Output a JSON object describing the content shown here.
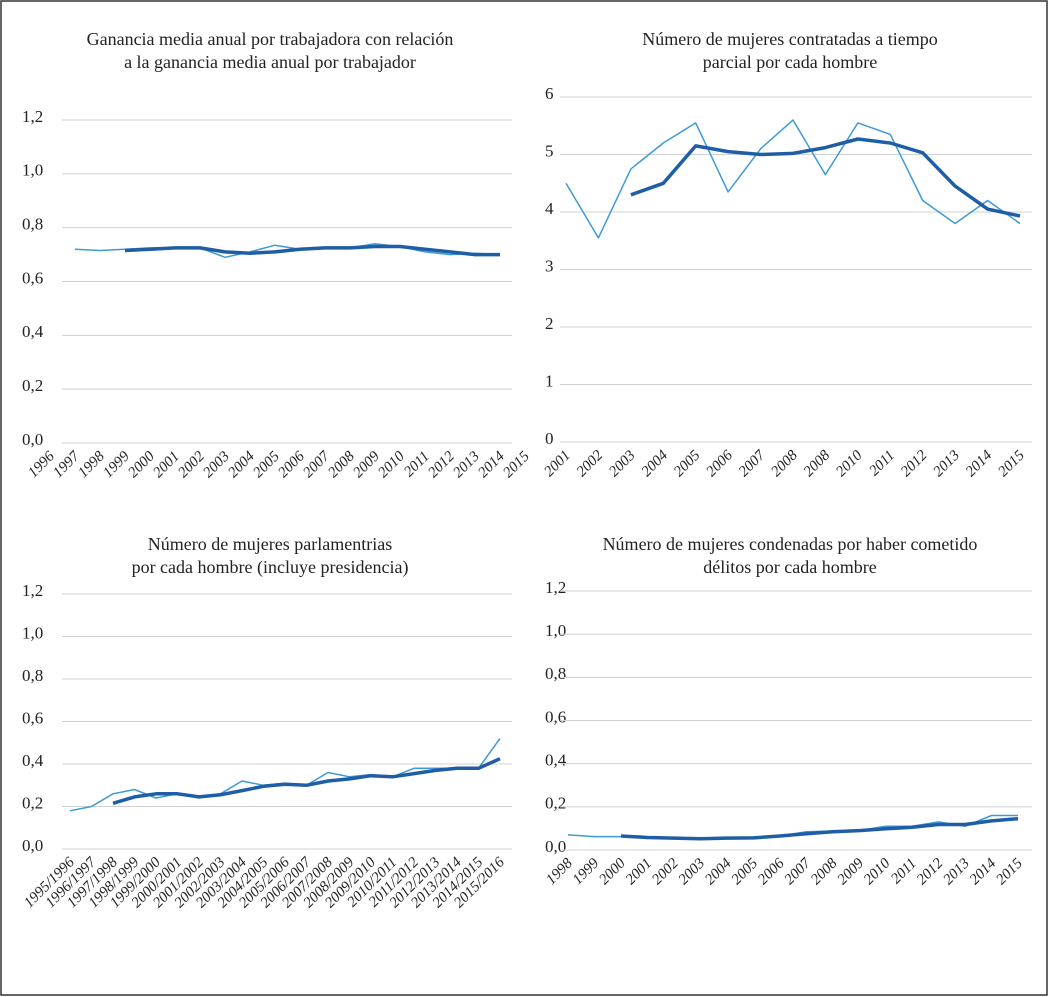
{
  "chart_data": [
    {
      "type": "line",
      "title": [
        "Ganancia media anual por trabajadora con relación",
        "a la ganancia media anual por trabajador"
      ],
      "categories": [
        "1996",
        "1997",
        "1998",
        "1999",
        "2000",
        "2001",
        "2002",
        "2003",
        "2004",
        "2005",
        "2006",
        "2007",
        "2008",
        "2009",
        "2010",
        "2011",
        "2012",
        "2013",
        "2014",
        "2015"
      ],
      "series": [
        {
          "color": "#3d9ad8",
          "values": [
            null,
            0.72,
            0.715,
            0.72,
            0.725,
            0.725,
            0.725,
            0.69,
            0.71,
            0.735,
            0.72,
            0.725,
            0.725,
            0.74,
            0.73,
            0.71,
            0.7,
            0.705,
            0.7,
            null
          ]
        },
        {
          "color": "#1f5ea6",
          "values": [
            null,
            null,
            null,
            0.715,
            0.72,
            0.725,
            0.725,
            0.71,
            0.705,
            0.71,
            0.72,
            0.725,
            0.725,
            0.73,
            0.73,
            0.72,
            0.71,
            0.7,
            0.7,
            null
          ]
        }
      ],
      "ylim": [
        0,
        1.2
      ],
      "yticks": [
        {
          "value": 0,
          "label": "0,0"
        },
        {
          "value": 0.2,
          "label": "0,2"
        },
        {
          "value": 0.4,
          "label": "0,4"
        },
        {
          "value": 0.6,
          "label": "0,6"
        },
        {
          "value": 0.8,
          "label": "0,8"
        },
        {
          "value": 1,
          "label": "1,0"
        },
        {
          "value": 1.2,
          "label": "1,2"
        }
      ],
      "grid": true
    },
    {
      "type": "line",
      "title": [
        "Número de mujeres contratadas a tiempo",
        "parcial por cada hombre"
      ],
      "categories": [
        "2001",
        "2002",
        "2003",
        "2004",
        "2005",
        "2006",
        "2007",
        "2008",
        "2008",
        "2010",
        "2011",
        "2012",
        "2013",
        "2014",
        "2015"
      ],
      "series": [
        {
          "color": "#3d9ad8",
          "values": [
            4.5,
            3.55,
            4.75,
            5.2,
            5.55,
            4.35,
            5.1,
            5.6,
            4.65,
            5.55,
            5.35,
            4.2,
            3.8,
            4.2,
            3.8
          ]
        },
        {
          "color": "#1f5ea6",
          "values": [
            null,
            null,
            4.3,
            4.5,
            5.15,
            5.05,
            5.0,
            5.02,
            5.12,
            5.27,
            5.2,
            5.03,
            4.45,
            4.05,
            3.93
          ]
        }
      ],
      "ylim": [
        0,
        6
      ],
      "yticks": [
        0,
        1,
        2,
        3,
        4,
        5,
        6
      ],
      "grid": true
    },
    {
      "type": "line",
      "title": [
        "Número de mujeres parlamentrias",
        "por cada hombre (incluye presidencia)"
      ],
      "categories": [
        "1995/1996",
        "1996/1997",
        "1997/1998",
        "1998/1999",
        "1999/2000",
        "2000/2001",
        "2001/2002",
        "2002/2003",
        "2003/2004",
        "2004/2005",
        "2005/2006",
        "2006/2007",
        "2007/2008",
        "2008/2009",
        "2009/2010",
        "2010/2011",
        "2011/2012",
        "2012/2013",
        "2013/2014",
        "2014/2015",
        "2015/2016"
      ],
      "series": [
        {
          "color": "#3d9ad8",
          "values": [
            0.18,
            0.2,
            0.26,
            0.28,
            0.24,
            0.26,
            0.24,
            0.26,
            0.32,
            0.3,
            0.31,
            0.3,
            0.36,
            0.34,
            0.35,
            0.34,
            0.38,
            0.38,
            0.38,
            0.38,
            0.52
          ]
        },
        {
          "color": "#1f5ea6",
          "values": [
            null,
            null,
            0.215,
            0.245,
            0.26,
            0.26,
            0.245,
            0.255,
            0.275,
            0.295,
            0.305,
            0.3,
            0.32,
            0.33,
            0.345,
            0.34,
            0.355,
            0.37,
            0.38,
            0.38,
            0.425
          ]
        }
      ],
      "ylim": [
        0,
        1.2
      ],
      "yticks": [
        {
          "value": 0,
          "label": "0,0"
        },
        {
          "value": 0.2,
          "label": "0,2"
        },
        {
          "value": 0.4,
          "label": "0,4"
        },
        {
          "value": 0.6,
          "label": "0,6"
        },
        {
          "value": 0.8,
          "label": "0,8"
        },
        {
          "value": 1,
          "label": "1,0"
        },
        {
          "value": 1.2,
          "label": "1,2"
        }
      ],
      "grid": true
    },
    {
      "type": "line",
      "title": [
        "Número de mujeres condenadas por haber cometido",
        "délitos por cada hombre"
      ],
      "categories": [
        "1998",
        "1999",
        "2000",
        "2001",
        "2002",
        "2003",
        "2004",
        "2005",
        "2006",
        "2007",
        "2008",
        "2009",
        "2010",
        "2011",
        "2012",
        "2013",
        "2014",
        "2015"
      ],
      "series": [
        {
          "color": "#3d9ad8",
          "values": [
            0.07,
            0.062,
            0.062,
            0.058,
            0.055,
            0.052,
            0.058,
            0.058,
            0.065,
            0.085,
            0.088,
            0.09,
            0.11,
            0.11,
            0.13,
            0.11,
            0.16,
            0.16
          ]
        },
        {
          "color": "#1f5ea6",
          "values": [
            null,
            null,
            0.065,
            0.058,
            0.055,
            0.052,
            0.055,
            0.056,
            0.065,
            0.075,
            0.085,
            0.09,
            0.098,
            0.105,
            0.118,
            0.118,
            0.135,
            0.145
          ]
        }
      ],
      "ylim": [
        0,
        1.2
      ],
      "yticks": [
        {
          "value": 0,
          "label": "0,0"
        },
        {
          "value": 0.2,
          "label": "0,2"
        },
        {
          "value": 0.4,
          "label": "0,4"
        },
        {
          "value": 0.6,
          "label": "0,6"
        },
        {
          "value": 0.8,
          "label": "0,8"
        },
        {
          "value": 1,
          "label": "1,0"
        },
        {
          "value": 1.2,
          "label": "1,2"
        }
      ],
      "grid": true
    }
  ]
}
